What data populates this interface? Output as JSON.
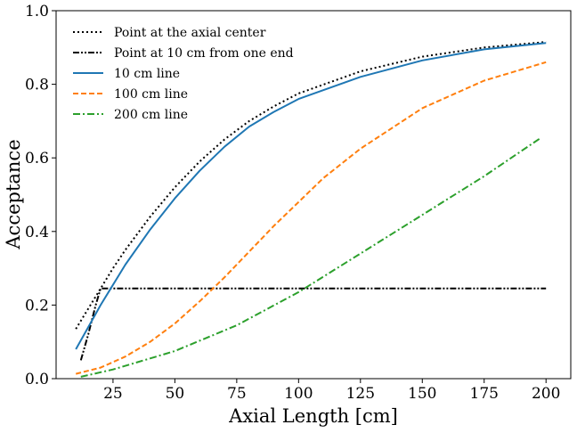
{
  "chart_data": {
    "type": "line",
    "title": "",
    "xlabel": "Axial Length [cm]",
    "ylabel": "Acceptance",
    "xlim": [
      2,
      210
    ],
    "ylim": [
      0.0,
      1.0
    ],
    "xticks": [
      25,
      50,
      75,
      100,
      125,
      150,
      175,
      200
    ],
    "yticks": [
      0.0,
      0.2,
      0.4,
      0.6,
      0.8,
      1.0
    ],
    "xtick_labels": [
      "25",
      "50",
      "75",
      "100",
      "125",
      "150",
      "175",
      "200"
    ],
    "ytick_labels": [
      "0.0",
      "0.2",
      "0.4",
      "0.6",
      "0.8",
      "1.0"
    ],
    "legend_position": "top-left",
    "series": [
      {
        "name": "Point at the axial center",
        "color": "#000000",
        "style": "dotted",
        "x": [
          10,
          15,
          20,
          25,
          30,
          40,
          50,
          60,
          70,
          80,
          90,
          100,
          125,
          150,
          175,
          200
        ],
        "y": [
          0.135,
          0.19,
          0.245,
          0.3,
          0.35,
          0.44,
          0.52,
          0.59,
          0.65,
          0.7,
          0.74,
          0.775,
          0.835,
          0.875,
          0.9,
          0.915
        ]
      },
      {
        "name": "Point at 10 cm from one end",
        "color": "#000000",
        "style": "dashdotdot",
        "x": [
          12,
          15,
          18,
          20,
          25,
          50,
          100,
          150,
          200
        ],
        "y": [
          0.05,
          0.12,
          0.2,
          0.245,
          0.245,
          0.245,
          0.245,
          0.245,
          0.245
        ]
      },
      {
        "name": "10 cm line",
        "color": "#1f77b4",
        "style": "solid",
        "x": [
          10,
          15,
          20,
          25,
          30,
          40,
          50,
          60,
          70,
          80,
          90,
          100,
          125,
          150,
          175,
          200
        ],
        "y": [
          0.08,
          0.14,
          0.2,
          0.255,
          0.31,
          0.405,
          0.49,
          0.565,
          0.63,
          0.685,
          0.725,
          0.76,
          0.82,
          0.865,
          0.895,
          0.912
        ]
      },
      {
        "name": "100 cm line",
        "color": "#ff7f0e",
        "style": "dashed",
        "x": [
          10,
          20,
          30,
          40,
          50,
          60,
          70,
          80,
          90,
          100,
          110,
          125,
          150,
          175,
          200
        ],
        "y": [
          0.013,
          0.03,
          0.06,
          0.1,
          0.15,
          0.21,
          0.275,
          0.345,
          0.415,
          0.48,
          0.545,
          0.625,
          0.735,
          0.81,
          0.86
        ]
      },
      {
        "name": "200 cm line",
        "color": "#2ca02c",
        "style": "dashdot",
        "x": [
          12,
          25,
          50,
          75,
          100,
          125,
          150,
          175,
          198
        ],
        "y": [
          0.005,
          0.025,
          0.075,
          0.145,
          0.235,
          0.34,
          0.445,
          0.55,
          0.655
        ]
      }
    ]
  }
}
